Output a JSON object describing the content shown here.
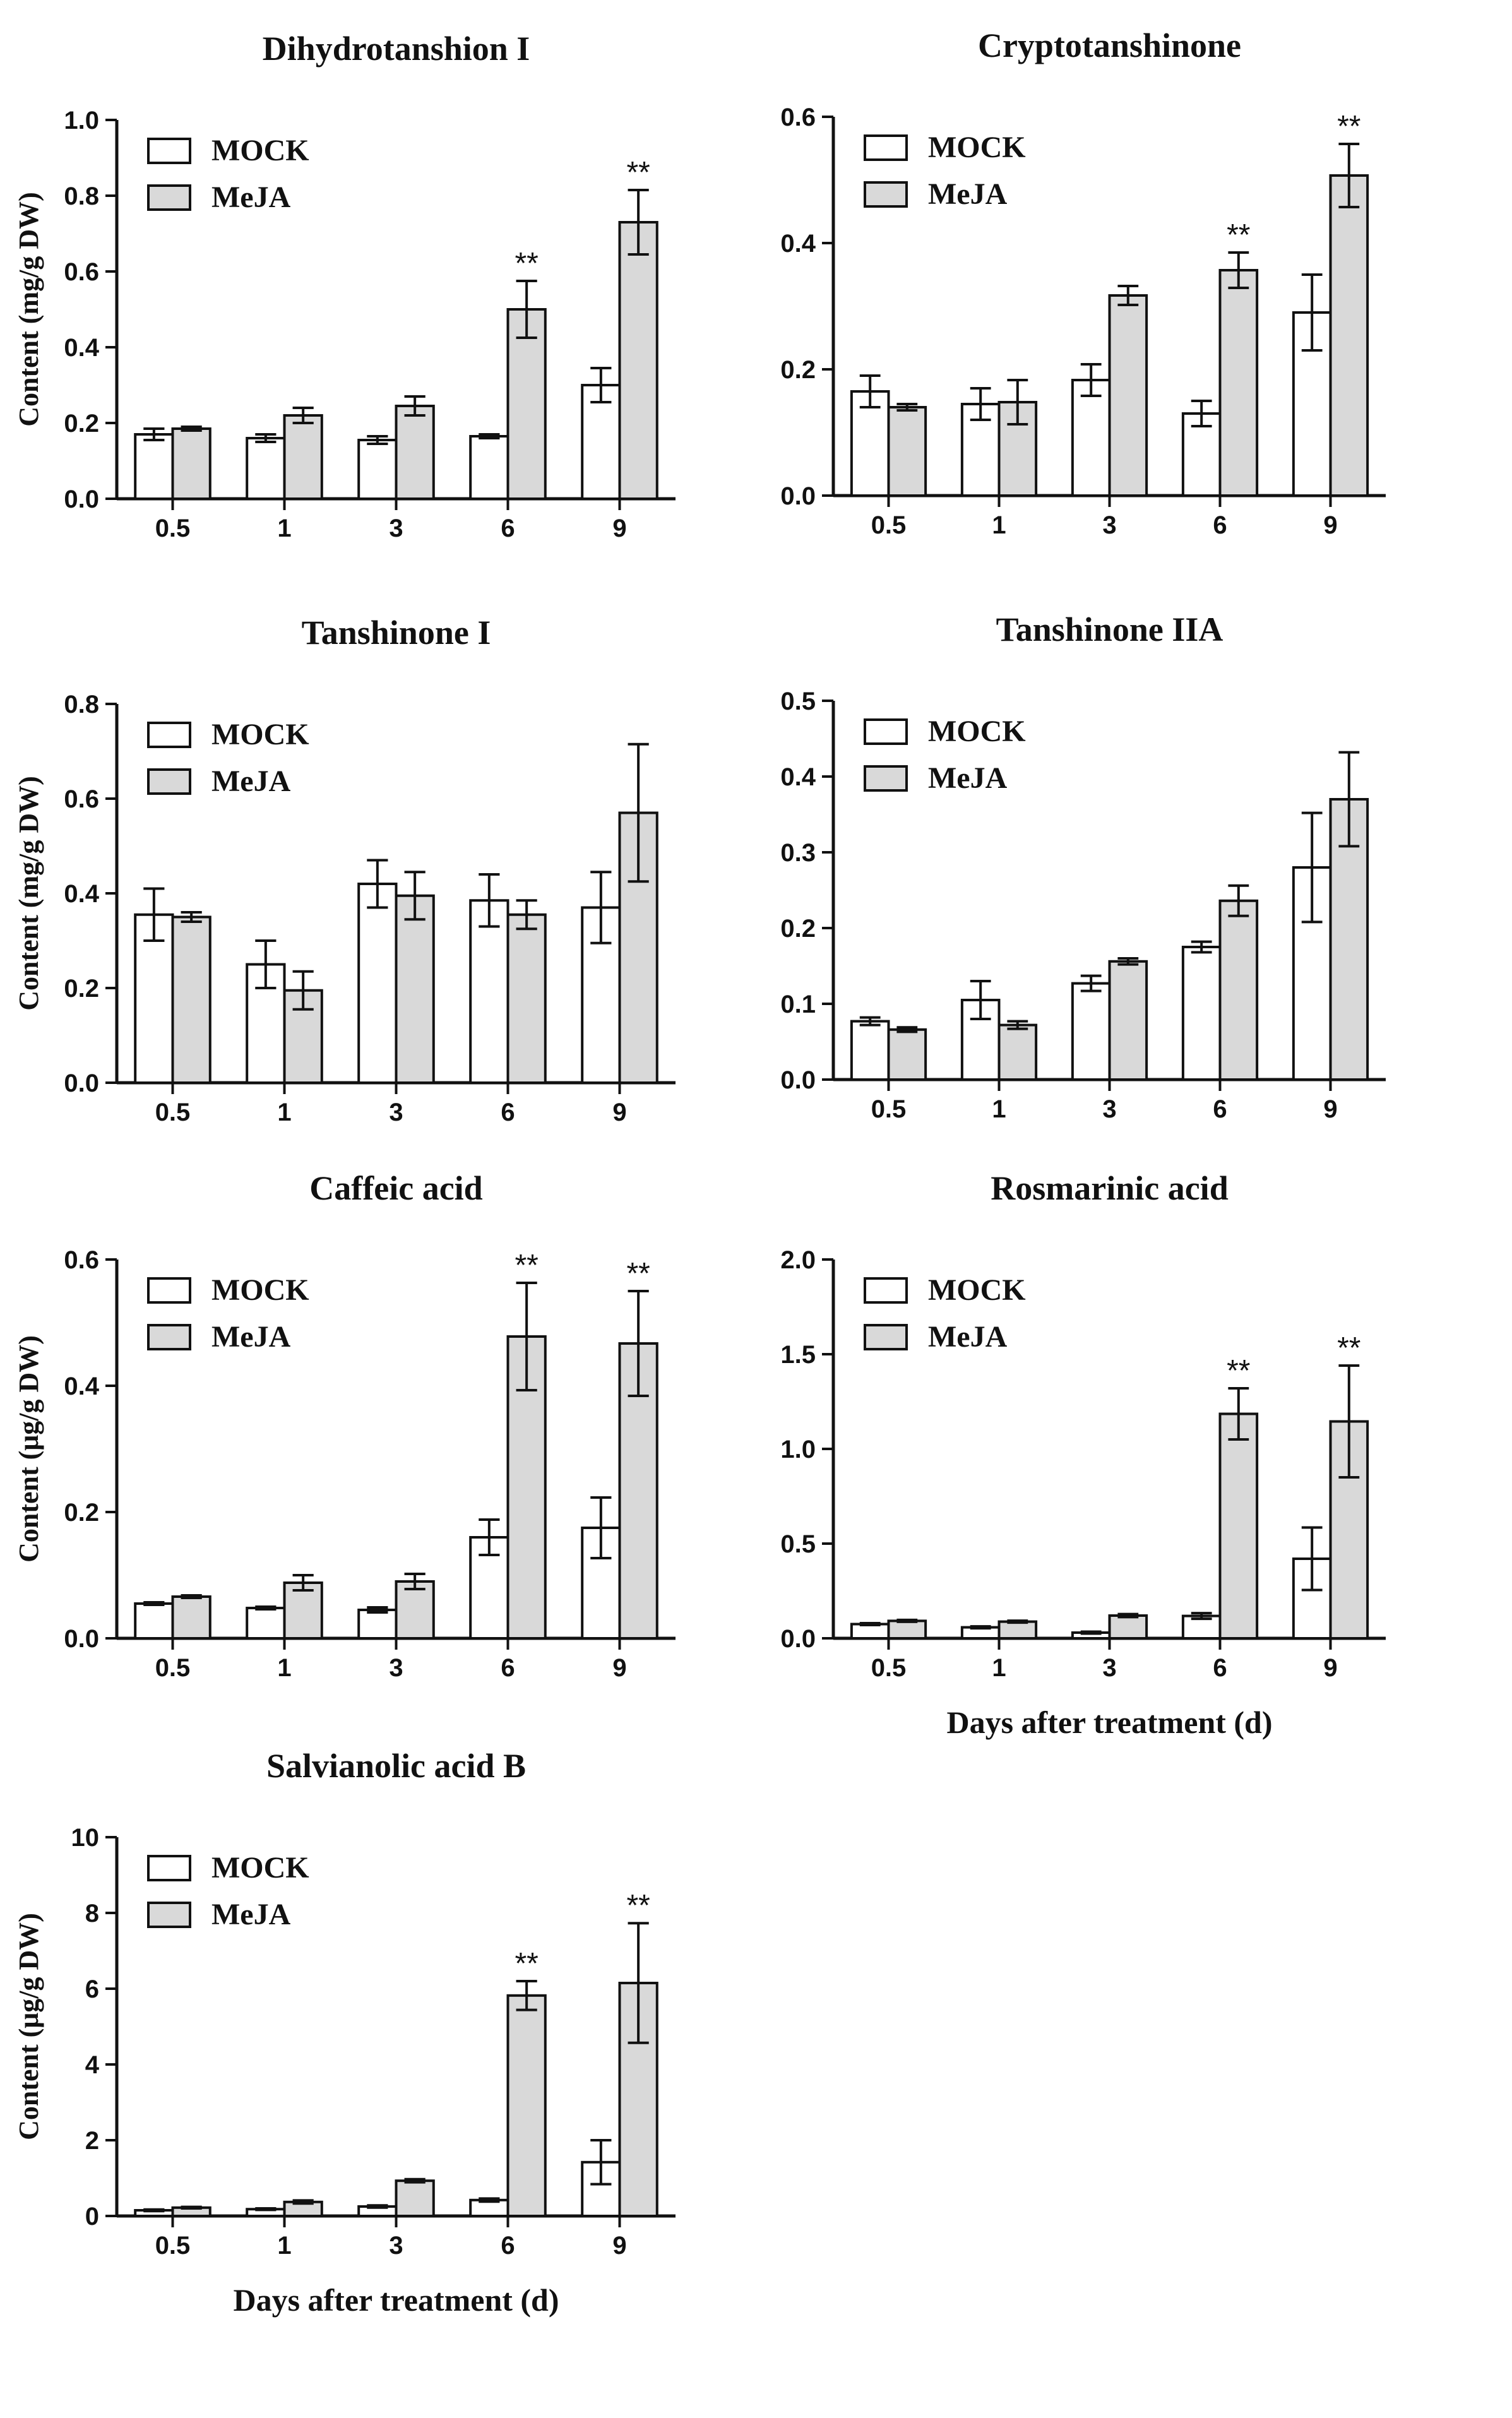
{
  "colors": {
    "mock_fill": "#ffffff",
    "meja_fill": "#d9d9d9",
    "stroke": "#111111"
  },
  "chart_data": [
    {
      "type": "bar",
      "title": "Dihydrotanshion I",
      "ylabel": "Content (mg/g DW)",
      "xlabel": "",
      "categories": [
        "0.5",
        "1",
        "3",
        "6",
        "9"
      ],
      "ylim": [
        0,
        1.0
      ],
      "yticks": [
        "0.0",
        "0.2",
        "0.4",
        "0.6",
        "0.8",
        "1.0"
      ],
      "legend": [
        "MOCK",
        "MeJA"
      ],
      "series": [
        {
          "name": "MOCK",
          "values": [
            0.17,
            0.16,
            0.155,
            0.165,
            0.3
          ],
          "errors": [
            0.015,
            0.01,
            0.01,
            0.005,
            0.045
          ]
        },
        {
          "name": "MeJA",
          "values": [
            0.185,
            0.22,
            0.245,
            0.5,
            0.73
          ],
          "errors": [
            0.005,
            0.02,
            0.025,
            0.075,
            0.085
          ]
        }
      ],
      "annotations": [
        {
          "category": "6",
          "series": "MeJA",
          "text": "**"
        },
        {
          "category": "9",
          "series": "MeJA",
          "text": "**"
        }
      ]
    },
    {
      "type": "bar",
      "title": "Cryptotanshinone",
      "ylabel": "",
      "xlabel": "",
      "categories": [
        "0.5",
        "1",
        "3",
        "6",
        "9"
      ],
      "ylim": [
        0,
        0.6
      ],
      "yticks": [
        "0.0",
        "0.2",
        "0.4",
        "0.6"
      ],
      "legend": [
        "MOCK",
        "MeJA"
      ],
      "series": [
        {
          "name": "MOCK",
          "values": [
            0.165,
            0.145,
            0.183,
            0.13,
            0.29
          ],
          "errors": [
            0.025,
            0.025,
            0.025,
            0.02,
            0.06
          ]
        },
        {
          "name": "MeJA",
          "values": [
            0.14,
            0.148,
            0.317,
            0.357,
            0.507
          ],
          "errors": [
            0.005,
            0.035,
            0.015,
            0.028,
            0.05
          ]
        }
      ],
      "annotations": [
        {
          "category": "6",
          "series": "MeJA",
          "text": "**"
        },
        {
          "category": "9",
          "series": "MeJA",
          "text": "**"
        }
      ]
    },
    {
      "type": "bar",
      "title": "Tanshinone I",
      "ylabel": "Content (mg/g DW)",
      "xlabel": "",
      "categories": [
        "0.5",
        "1",
        "3",
        "6",
        "9"
      ],
      "ylim": [
        0,
        0.8
      ],
      "yticks": [
        "0.0",
        "0.2",
        "0.4",
        "0.6",
        "0.8"
      ],
      "legend": [
        "MOCK",
        "MeJA"
      ],
      "series": [
        {
          "name": "MOCK",
          "values": [
            0.355,
            0.25,
            0.42,
            0.385,
            0.37
          ],
          "errors": [
            0.055,
            0.05,
            0.05,
            0.055,
            0.075
          ]
        },
        {
          "name": "MeJA",
          "values": [
            0.35,
            0.195,
            0.395,
            0.355,
            0.57
          ],
          "errors": [
            0.01,
            0.04,
            0.05,
            0.03,
            0.145
          ]
        }
      ],
      "annotations": []
    },
    {
      "type": "bar",
      "title": "Tanshinone IIA",
      "ylabel": "",
      "xlabel": "",
      "categories": [
        "0.5",
        "1",
        "3",
        "6",
        "9"
      ],
      "ylim": [
        0,
        0.5
      ],
      "yticks": [
        "0.0",
        "0.1",
        "0.2",
        "0.3",
        "0.4",
        "0.5"
      ],
      "legend": [
        "MOCK",
        "MeJA"
      ],
      "series": [
        {
          "name": "MOCK",
          "values": [
            0.077,
            0.105,
            0.127,
            0.175,
            0.28
          ],
          "errors": [
            0.005,
            0.025,
            0.01,
            0.007,
            0.072
          ]
        },
        {
          "name": "MeJA",
          "values": [
            0.066,
            0.072,
            0.156,
            0.236,
            0.37
          ],
          "errors": [
            0.003,
            0.005,
            0.004,
            0.02,
            0.062
          ]
        }
      ],
      "annotations": []
    },
    {
      "type": "bar",
      "title": "Caffeic acid",
      "ylabel": "Content (μg/g DW)",
      "xlabel": "",
      "categories": [
        "0.5",
        "1",
        "3",
        "6",
        "9"
      ],
      "ylim": [
        0,
        0.6
      ],
      "yticks": [
        "0.0",
        "0.2",
        "0.4",
        "0.6"
      ],
      "legend": [
        "MOCK",
        "MeJA"
      ],
      "series": [
        {
          "name": "MOCK",
          "values": [
            0.055,
            0.048,
            0.045,
            0.16,
            0.175
          ],
          "errors": [
            0.002,
            0.002,
            0.004,
            0.028,
            0.048
          ]
        },
        {
          "name": "MeJA",
          "values": [
            0.066,
            0.088,
            0.09,
            0.478,
            0.467
          ],
          "errors": [
            0.002,
            0.012,
            0.012,
            0.085,
            0.083
          ]
        }
      ],
      "annotations": [
        {
          "category": "6",
          "series": "MeJA",
          "text": "**"
        },
        {
          "category": "9",
          "series": "MeJA",
          "text": "**"
        }
      ]
    },
    {
      "type": "bar",
      "title": "Rosmarinic acid",
      "ylabel": "",
      "xlabel": "Days after treatment (d)",
      "categories": [
        "0.5",
        "1",
        "3",
        "6",
        "9"
      ],
      "ylim": [
        0,
        2.0
      ],
      "yticks": [
        "0.0",
        "0.5",
        "1.0",
        "1.5",
        "2.0"
      ],
      "legend": [
        "MOCK",
        "MeJA"
      ],
      "series": [
        {
          "name": "MOCK",
          "values": [
            0.075,
            0.058,
            0.03,
            0.118,
            0.42
          ],
          "errors": [
            0.005,
            0.005,
            0.005,
            0.015,
            0.165
          ]
        },
        {
          "name": "MeJA",
          "values": [
            0.092,
            0.088,
            0.12,
            1.185,
            1.145
          ],
          "errors": [
            0.005,
            0.005,
            0.008,
            0.135,
            0.295
          ]
        }
      ],
      "annotations": [
        {
          "category": "6",
          "series": "MeJA",
          "text": "**"
        },
        {
          "category": "9",
          "series": "MeJA",
          "text": "**"
        }
      ]
    },
    {
      "type": "bar",
      "title": "Salvianolic acid B",
      "ylabel": "Content (μg/g DW)",
      "xlabel": "Days after treatment (d)",
      "categories": [
        "0.5",
        "1",
        "3",
        "6",
        "9"
      ],
      "ylim": [
        0,
        10
      ],
      "yticks": [
        "0",
        "2",
        "4",
        "6",
        "8",
        "10"
      ],
      "legend": [
        "MOCK",
        "MeJA"
      ],
      "series": [
        {
          "name": "MOCK",
          "values": [
            0.15,
            0.18,
            0.25,
            0.42,
            1.42
          ],
          "errors": [
            0.02,
            0.02,
            0.03,
            0.04,
            0.58
          ]
        },
        {
          "name": "MeJA",
          "values": [
            0.22,
            0.37,
            0.93,
            5.82,
            6.15
          ],
          "errors": [
            0.02,
            0.04,
            0.04,
            0.38,
            1.58
          ]
        }
      ],
      "annotations": [
        {
          "category": "6",
          "series": "MeJA",
          "text": "**"
        },
        {
          "category": "9",
          "series": "MeJA",
          "text": "**"
        }
      ]
    }
  ]
}
